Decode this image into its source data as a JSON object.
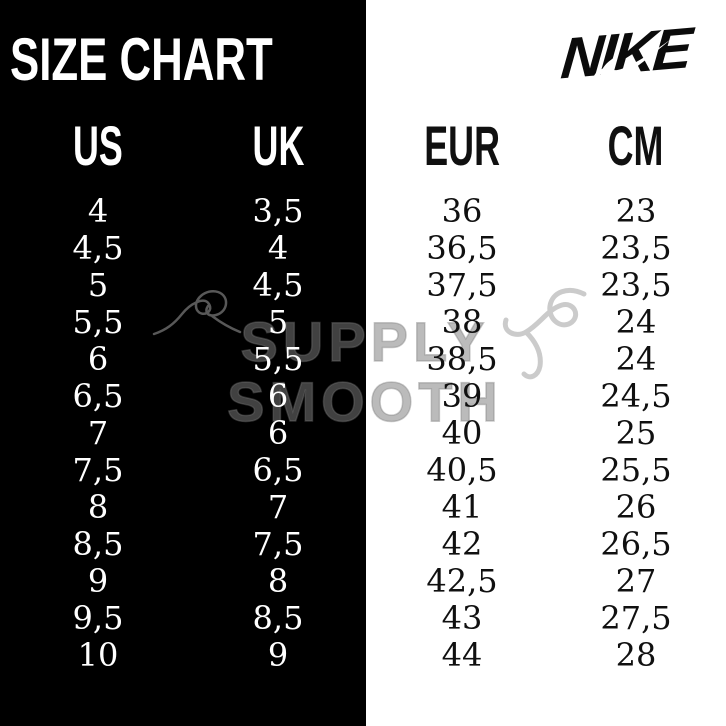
{
  "title": "SIZE CHART",
  "brand": {
    "wordmark": "NIKE"
  },
  "watermark": {
    "line1": "SUPPLY",
    "line2": "SMOOTH"
  },
  "colors": {
    "left_panel_bg": "#000000",
    "right_panel_bg": "#ffffff",
    "left_text": "#ffffff",
    "right_text": "#101010",
    "watermark_gray": "#7d7d7d"
  },
  "chart_data": {
    "type": "table",
    "title": "SIZE CHART",
    "columns": [
      "US",
      "UK",
      "EUR",
      "CM"
    ],
    "rows": [
      [
        "4",
        "3,5",
        "36",
        "23"
      ],
      [
        "4,5",
        "4",
        "36,5",
        "23,5"
      ],
      [
        "5",
        "4,5",
        "37,5",
        "23,5"
      ],
      [
        "5,5",
        "5",
        "38",
        "24"
      ],
      [
        "6",
        "5,5",
        "38,5",
        "24"
      ],
      [
        "6,5",
        "6",
        "39",
        "24,5"
      ],
      [
        "7",
        "6",
        "40",
        "25"
      ],
      [
        "7,5",
        "6,5",
        "40,5",
        "25,5"
      ],
      [
        "8",
        "7",
        "41",
        "26"
      ],
      [
        "8,5",
        "7,5",
        "42",
        "26,5"
      ],
      [
        "9",
        "8",
        "42,5",
        "27"
      ],
      [
        "9,5",
        "8,5",
        "43",
        "27,5"
      ],
      [
        "10",
        "9",
        "44",
        "28"
      ]
    ]
  }
}
